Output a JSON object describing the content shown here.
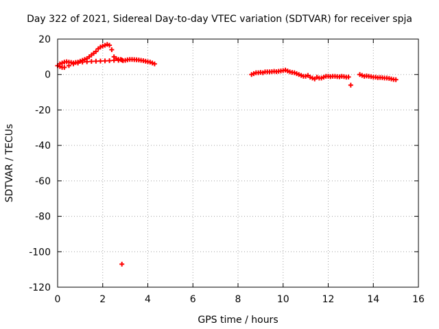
{
  "chart_data": {
    "type": "scatter",
    "title": "Day 322 of 2021, Sidereal Day-to-day VTEC variation (SDTVAR) for receiver spja",
    "xlabel": "GPS time / hours",
    "ylabel": "SDTVAR / TECUs",
    "xlim": [
      0,
      16
    ],
    "ylim": [
      -120,
      20
    ],
    "xticks": [
      0,
      2,
      4,
      6,
      8,
      10,
      12,
      14,
      16
    ],
    "yticks": [
      20,
      0,
      -20,
      -40,
      -60,
      -80,
      -100,
      -120
    ],
    "grid": true,
    "marker": "+",
    "series": [
      {
        "name": "SDTVAR",
        "color": "#ff0000",
        "x": [
          0.0,
          0.1,
          0.2,
          0.3,
          0.4,
          0.5,
          0.6,
          0.7,
          0.8,
          0.9,
          1.0,
          1.1,
          1.2,
          1.3,
          1.4,
          1.5,
          1.6,
          1.7,
          1.8,
          1.9,
          2.0,
          2.1,
          2.2,
          2.3,
          2.4,
          2.5,
          2.6,
          2.7,
          2.8,
          0.1,
          0.2,
          0.3,
          0.5,
          0.7,
          0.9,
          1.1,
          1.3,
          1.5,
          1.7,
          1.9,
          2.1,
          2.3,
          2.5,
          2.7,
          2.85,
          2.85,
          2.9,
          3.0,
          3.1,
          3.2,
          3.3,
          3.4,
          3.5,
          3.6,
          3.7,
          3.8,
          3.9,
          4.0,
          4.1,
          4.2,
          4.3,
          8.6,
          8.7,
          8.8,
          8.9,
          9.0,
          9.1,
          9.2,
          9.3,
          9.4,
          9.5,
          9.6,
          9.7,
          9.8,
          9.9,
          10.0,
          10.1,
          10.2,
          10.3,
          10.4,
          10.5,
          10.6,
          10.7,
          10.8,
          10.9,
          11.0,
          11.1,
          11.2,
          11.3,
          11.4,
          11.5,
          11.6,
          11.7,
          11.8,
          11.9,
          12.0,
          12.1,
          12.2,
          12.3,
          12.4,
          12.5,
          12.6,
          12.7,
          12.8,
          12.9,
          13.0,
          13.4,
          13.5,
          13.6,
          13.7,
          13.8,
          13.9,
          14.0,
          14.1,
          14.2,
          14.3,
          14.4,
          14.5,
          14.6,
          14.7,
          14.8,
          14.9,
          15.0
        ],
        "y": [
          5,
          6,
          6.5,
          7,
          7.2,
          7,
          6.8,
          6.5,
          6.8,
          7,
          7.5,
          8,
          8.5,
          9,
          10,
          11,
          12,
          13,
          14.5,
          15.5,
          16,
          16.5,
          17,
          16.5,
          14,
          10,
          9,
          8.5,
          8.5,
          4.5,
          4,
          4,
          5,
          6,
          6.5,
          7,
          7.2,
          7.4,
          7.5,
          7.6,
          7.7,
          7.8,
          8,
          8,
          8.2,
          -107,
          7.8,
          8,
          8.3,
          8.5,
          8.5,
          8.4,
          8.3,
          8.2,
          8,
          7.8,
          7.5,
          7.2,
          7,
          6.5,
          6,
          0,
          0.5,
          1,
          1,
          1.2,
          1,
          1.5,
          1.5,
          1.5,
          1.6,
          1.8,
          1.6,
          1.8,
          2,
          2.2,
          2.5,
          2,
          1.5,
          1.2,
          1,
          0.5,
          0,
          -0.5,
          -1,
          -1,
          -0.5,
          -1.5,
          -2,
          -2.5,
          -1.5,
          -2,
          -2,
          -1.5,
          -1,
          -1,
          -1.2,
          -1,
          -1,
          -1.2,
          -1.3,
          -1,
          -1.2,
          -1.5,
          -1.4,
          -6,
          0,
          -0.5,
          -1,
          -0.8,
          -1,
          -1.2,
          -1.5,
          -1.5,
          -1.8,
          -1.7,
          -1.8,
          -2,
          -2,
          -2.2,
          -2.5,
          -2.8,
          -2.9
        ]
      }
    ]
  }
}
